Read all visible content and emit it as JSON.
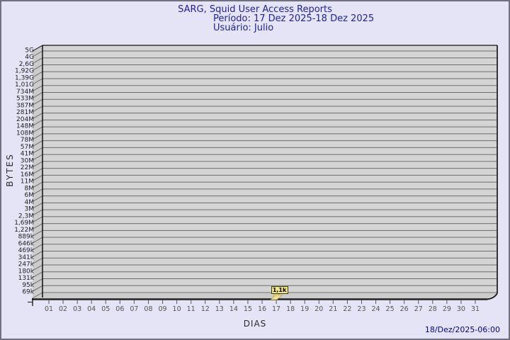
{
  "window": {
    "background": "#e4e4f6",
    "border_color": "#70707e"
  },
  "header": {
    "title": "SARG, Squid User Access Reports",
    "period": "Período: 17 Dez 2025-18 Dez 2025",
    "user": "Usuário: Julio",
    "text_color": "#2121a3"
  },
  "chart_data": {
    "type": "point",
    "title": "SARG, Squid User Access Reports",
    "subtitle_period": "Período: 17 Dez 2025-18 Dez 2025",
    "subtitle_user": "Usuário: Julio",
    "xlabel": "DIAS",
    "ylabel": "BYTES",
    "grid": true,
    "y_scale": "log-like",
    "y_ticks": [
      "5G",
      "4G",
      "2,6G",
      "1,92G",
      "1,39G",
      "1,01G",
      "734M",
      "533M",
      "387M",
      "281M",
      "204M",
      "148M",
      "108M",
      "78M",
      "57M",
      "41M",
      "30M",
      "22M",
      "16M",
      "11M",
      "8M",
      "6M",
      "4M",
      "3M",
      "2,3M",
      "1,69M",
      "1,22M",
      "889k",
      "646k",
      "469k",
      "341k",
      "247k",
      "180k",
      "131k",
      "95k",
      "69k"
    ],
    "x_ticks": [
      "01",
      "02",
      "03",
      "04",
      "05",
      "06",
      "07",
      "08",
      "09",
      "10",
      "11",
      "12",
      "13",
      "14",
      "15",
      "16",
      "17",
      "18",
      "19",
      "20",
      "21",
      "22",
      "23",
      "24",
      "25",
      "26",
      "27",
      "28",
      "29",
      "30",
      "31"
    ],
    "points": [
      {
        "day": 17,
        "label": "1,1k"
      }
    ],
    "colors": {
      "plot_face": "#d4d4d4",
      "plot_side": "#cbcbcb",
      "gridline": "#6e6e6e",
      "edge": "#222222",
      "point_fill": "#f2df8f",
      "point_box_fill": "#f0e68c",
      "y_tick_text": "#222222",
      "x_tick_text": "#555555"
    }
  },
  "footer": {
    "timestamp": "18/Dez/2025-06:00"
  }
}
